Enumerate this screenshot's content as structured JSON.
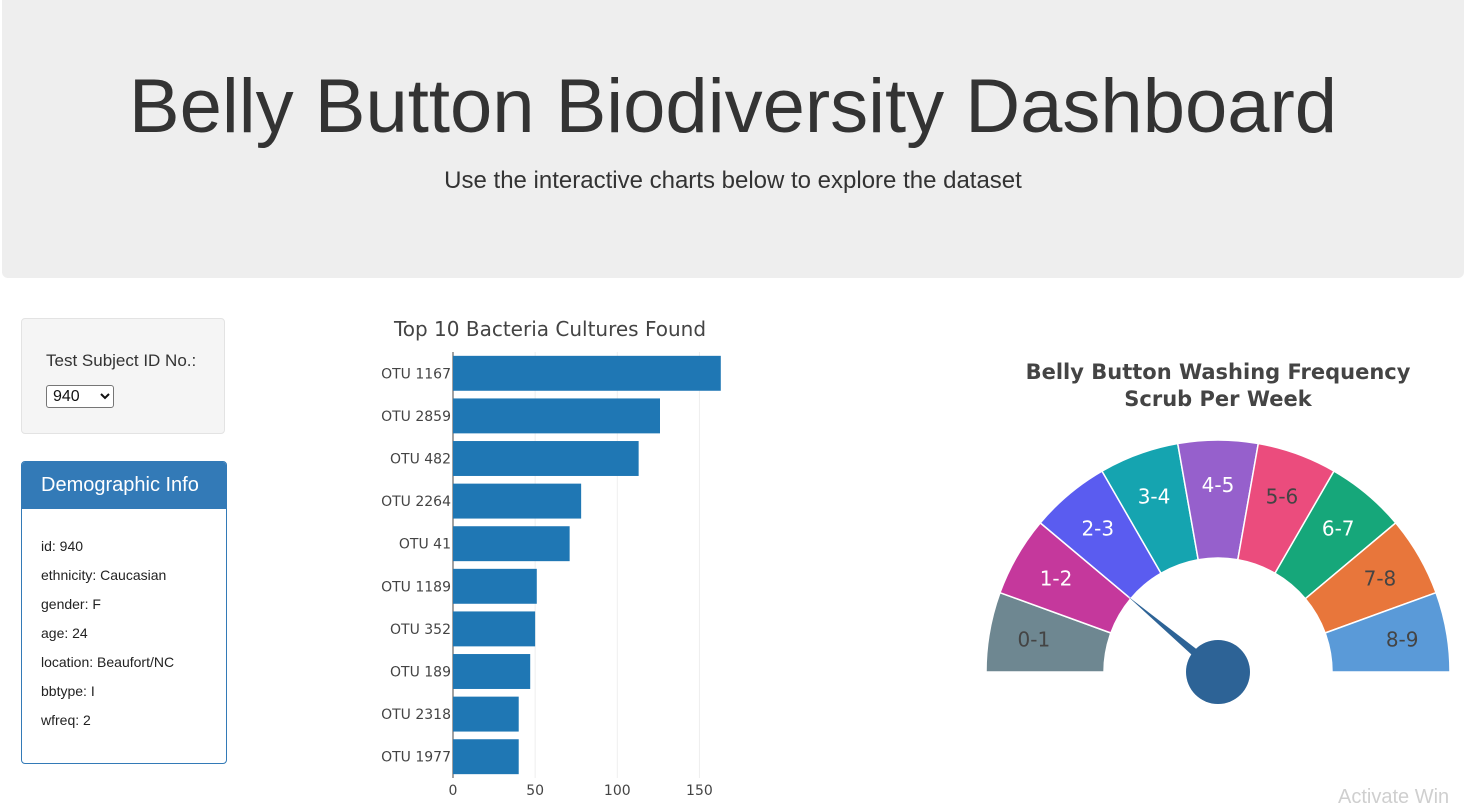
{
  "header": {
    "title": "Belly Button Biodiversity Dashboard",
    "subtitle": "Use the interactive charts below to explore the dataset"
  },
  "selector": {
    "label": "Test Subject ID No.:",
    "selected": "940",
    "options": [
      "940"
    ]
  },
  "demographics": {
    "heading": "Demographic Info",
    "rows": [
      "id: 940",
      "ethnicity: Caucasian",
      "gender: F",
      "age: 24",
      "location: Beaufort/NC",
      "bbtype: I",
      "wfreq: 2"
    ]
  },
  "bar_chart_data": {
    "type": "bar",
    "orientation": "horizontal",
    "title": "Top 10 Bacteria Cultures Found",
    "categories": [
      "OTU 1167",
      "OTU 2859",
      "OTU 482",
      "OTU 2264",
      "OTU 41",
      "OTU 1189",
      "OTU 352",
      "OTU 189",
      "OTU 2318",
      "OTU 1977"
    ],
    "values": [
      163,
      126,
      113,
      78,
      71,
      51,
      50,
      47,
      40,
      40
    ],
    "x_ticks": [
      "0",
      "50",
      "100",
      "150"
    ],
    "xlim": [
      0,
      168
    ],
    "grid": true,
    "color": "#1f77b4"
  },
  "gauge_data": {
    "type": "gauge",
    "title_line1": "Belly Button Washing Frequency",
    "title_line2": "Scrub Per Week",
    "value": 2,
    "range": [
      0,
      9
    ],
    "segments": [
      {
        "label": "0-1",
        "color": "#6e8791",
        "text_color": "#444444"
      },
      {
        "label": "1-2",
        "color": "#c5389c",
        "text_color": "#ffffff"
      },
      {
        "label": "2-3",
        "color": "#5a5cf0",
        "text_color": "#ffffff"
      },
      {
        "label": "3-4",
        "color": "#15a4b0",
        "text_color": "#ffffff"
      },
      {
        "label": "4-5",
        "color": "#9660cc",
        "text_color": "#ffffff"
      },
      {
        "label": "5-6",
        "color": "#eb4c7d",
        "text_color": "#444444"
      },
      {
        "label": "6-7",
        "color": "#16a77a",
        "text_color": "#ffffff"
      },
      {
        "label": "7-8",
        "color": "#e8763b",
        "text_color": "#444444"
      },
      {
        "label": "8-9",
        "color": "#5a9ad8",
        "text_color": "#444444"
      }
    ],
    "needle_color": "#2d6396"
  },
  "watermark": "Activate Win"
}
